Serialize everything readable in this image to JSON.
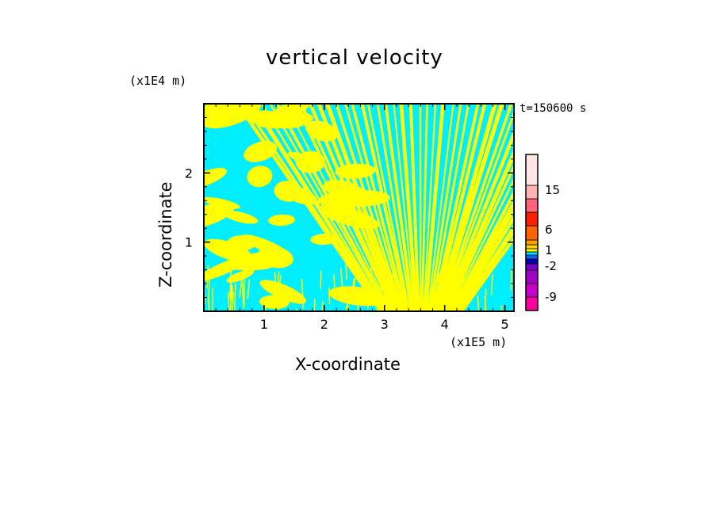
{
  "chart_data": {
    "type": "heatmap",
    "title": "vertical velocity",
    "xlabel": "X-coordinate",
    "ylabel": "Z-coordinate",
    "x_unit": "(x1E5 m)",
    "z_unit": "(x1E4 m)",
    "time_label": "t=150600 s",
    "xlim": [
      0,
      5.15
    ],
    "zlim": [
      0,
      3.0
    ],
    "x_ticks": [
      1,
      2,
      3,
      4,
      5
    ],
    "x_tick_labels": [
      "1",
      "2",
      "3",
      "4",
      "5"
    ],
    "z_ticks": [
      1,
      2
    ],
    "z_tick_labels": [
      "1",
      "2"
    ],
    "field_pattern": "alternating updrafts (yellow, 0 to 1) and downdrafts (cyan, -1 to 0) in tilted gravity-wave bands, diverging upward from x≈3.6",
    "colorbar": {
      "levels": [
        {
          "color": "#ff00a0"
        },
        {
          "color": "#c800c8"
        },
        {
          "color": "#a000c8"
        },
        {
          "color": "#7800c8"
        },
        {
          "color": "#0000b4"
        },
        {
          "color": "#0064ff"
        },
        {
          "color": "#00e6ff"
        },
        {
          "color": "#ffff00"
        },
        {
          "color": "#ffd200"
        },
        {
          "color": "#ffa000"
        },
        {
          "color": "#ff6400"
        },
        {
          "color": "#ff1e00"
        },
        {
          "color": "#ff6478"
        },
        {
          "color": "#ffb4b4"
        },
        {
          "color": "#ffe6e6"
        }
      ],
      "labels": [
        {
          "text": "15"
        },
        {
          "text": "6"
        },
        {
          "text": "1"
        },
        {
          "text": "-2"
        },
        {
          "text": "-9"
        }
      ]
    }
  }
}
